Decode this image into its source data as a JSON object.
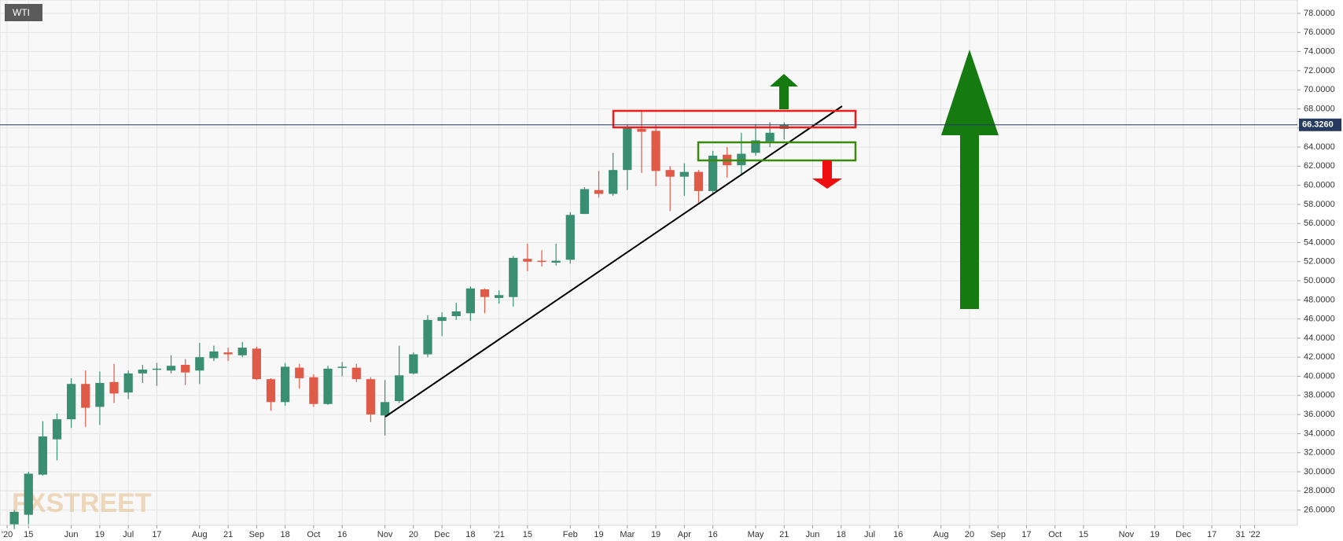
{
  "chart_data": {
    "type": "candlestick",
    "label": "WTI",
    "watermark": "FXSTREET",
    "up_color": "#3a8f72",
    "down_color": "#e05a48",
    "grid": true,
    "x": [
      0,
      1,
      2,
      3,
      4,
      5,
      6,
      7,
      8,
      9,
      10,
      11,
      12,
      13,
      14,
      15,
      16,
      17,
      18,
      19,
      20,
      21,
      22,
      23,
      24,
      25,
      26,
      27,
      28,
      29,
      30,
      31,
      32,
      33,
      34,
      35,
      36,
      37,
      38,
      39,
      40,
      41,
      42,
      43,
      44,
      45,
      46,
      47,
      48,
      49,
      50,
      51,
      52,
      53,
      54
    ],
    "open": [
      24.5,
      25.5,
      29.7,
      33.4,
      35.5,
      39.2,
      36.8,
      39.4,
      38.3,
      40.3,
      40.7,
      40.6,
      41.2,
      40.6,
      41.9,
      42.5,
      42.2,
      42.9,
      39.7,
      37.3,
      40.9,
      39.9,
      37.1,
      40.9,
      40.9,
      39.7,
      35.9,
      37.4,
      40.3,
      42.3,
      45.8,
      46.3,
      46.6,
      49.1,
      48.2,
      48.3,
      52.3,
      52.1,
      51.9,
      52.2,
      57.0,
      59.5,
      59.1,
      61.6,
      65.9,
      65.7,
      61.6,
      60.9,
      61.4,
      59.4,
      63.2,
      62.1,
      63.4,
      64.6,
      65.9
    ],
    "high": [
      26.0,
      30.0,
      35.3,
      36.1,
      39.8,
      40.6,
      40.5,
      41.3,
      40.6,
      41.2,
      41.4,
      42.2,
      41.8,
      43.5,
      43.2,
      43.0,
      43.6,
      43.1,
      39.8,
      41.4,
      41.3,
      40.2,
      41.1,
      41.5,
      41.3,
      39.9,
      39.6,
      43.2,
      42.5,
      46.4,
      46.7,
      47.7,
      49.4,
      49.2,
      49.0,
      52.6,
      53.9,
      53.2,
      53.9,
      57.2,
      59.8,
      61.5,
      63.4,
      66.3,
      67.9,
      66.3,
      62.0,
      62.3,
      61.6,
      63.6,
      64.0,
      65.5,
      66.4,
      66.6,
      66.6
    ],
    "low": [
      24.0,
      24.5,
      29.6,
      31.2,
      34.6,
      34.7,
      34.9,
      37.2,
      37.6,
      39.3,
      39.0,
      40.3,
      39.1,
      39.2,
      41.6,
      41.6,
      42.0,
      39.6,
      36.4,
      36.9,
      38.7,
      36.8,
      37.0,
      40.0,
      39.4,
      35.2,
      33.8,
      37.2,
      40.2,
      42.0,
      44.2,
      45.9,
      45.8,
      46.6,
      47.6,
      47.3,
      51.0,
      51.5,
      51.6,
      51.8,
      57.0,
      58.7,
      58.9,
      59.5,
      61.3,
      59.9,
      57.3,
      58.9,
      58.2,
      59.0,
      60.8,
      61.0,
      63.1,
      64.0,
      64.8
    ],
    "close": [
      25.8,
      29.8,
      33.7,
      35.5,
      39.2,
      36.7,
      39.3,
      38.2,
      40.3,
      40.7,
      40.8,
      41.1,
      40.4,
      42.0,
      42.6,
      42.3,
      43.0,
      39.7,
      37.3,
      41.0,
      39.8,
      37.1,
      40.8,
      41.0,
      39.7,
      36.0,
      37.3,
      40.1,
      42.3,
      45.9,
      46.2,
      46.8,
      49.2,
      48.3,
      48.5,
      52.4,
      52.0,
      52.0,
      52.1,
      56.9,
      59.6,
      59.1,
      61.6,
      66.1,
      65.6,
      61.5,
      60.9,
      61.4,
      59.4,
      63.1,
      62.1,
      63.3,
      64.7,
      65.5,
      66.3
    ],
    "last_price": {
      "value": 66.326,
      "label": "66.3260"
    },
    "last_price_color": "#253a5e",
    "xlim": [
      -1,
      90
    ],
    "xticks": [
      {
        "value": -0.5,
        "label": "'20"
      },
      {
        "value": 1,
        "label": "15"
      },
      {
        "value": 4,
        "label": "Jun"
      },
      {
        "value": 6,
        "label": "19"
      },
      {
        "value": 8,
        "label": "Jul"
      },
      {
        "value": 10,
        "label": "17"
      },
      {
        "value": 13,
        "label": "Aug"
      },
      {
        "value": 15,
        "label": "21"
      },
      {
        "value": 17,
        "label": "Sep"
      },
      {
        "value": 19,
        "label": "18"
      },
      {
        "value": 21,
        "label": "Oct"
      },
      {
        "value": 23,
        "label": "16"
      },
      {
        "value": 26,
        "label": "Nov"
      },
      {
        "value": 28,
        "label": "20"
      },
      {
        "value": 30,
        "label": "Dec"
      },
      {
        "value": 32,
        "label": "18"
      },
      {
        "value": 34,
        "label": "'21"
      },
      {
        "value": 36,
        "label": "15"
      },
      {
        "value": 39,
        "label": "Feb"
      },
      {
        "value": 41,
        "label": "19"
      },
      {
        "value": 43,
        "label": "Mar"
      },
      {
        "value": 45,
        "label": "19"
      },
      {
        "value": 47,
        "label": "Apr"
      },
      {
        "value": 49,
        "label": "16"
      },
      {
        "value": 52,
        "label": "May"
      },
      {
        "value": 54,
        "label": "21"
      },
      {
        "value": 56,
        "label": "Jun"
      },
      {
        "value": 58,
        "label": "18"
      },
      {
        "value": 60,
        "label": "Jul"
      },
      {
        "value": 62,
        "label": "16"
      },
      {
        "value": 65,
        "label": "Aug"
      },
      {
        "value": 67,
        "label": "20"
      },
      {
        "value": 69,
        "label": "Sep"
      },
      {
        "value": 71,
        "label": "17"
      },
      {
        "value": 73,
        "label": "Oct"
      },
      {
        "value": 75,
        "label": "15"
      },
      {
        "value": 78,
        "label": "Nov"
      },
      {
        "value": 80,
        "label": "19"
      },
      {
        "value": 82,
        "label": "Dec"
      },
      {
        "value": 84,
        "label": "17"
      },
      {
        "value": 86,
        "label": "31"
      },
      {
        "value": 87,
        "label": "'22"
      }
    ],
    "ylim": [
      24.4,
      79.4
    ],
    "yticks": [
      {
        "value": 26,
        "label": "26.0000"
      },
      {
        "value": 28,
        "label": "28.0000"
      },
      {
        "value": 30,
        "label": "30.0000"
      },
      {
        "value": 32,
        "label": "32.0000"
      },
      {
        "value": 34,
        "label": "34.0000"
      },
      {
        "value": 36,
        "label": "36.0000"
      },
      {
        "value": 38,
        "label": "38.0000"
      },
      {
        "value": 40,
        "label": "40.0000"
      },
      {
        "value": 42,
        "label": "42.0000"
      },
      {
        "value": 44,
        "label": "44.0000"
      },
      {
        "value": 46,
        "label": "46.0000"
      },
      {
        "value": 48,
        "label": "48.0000"
      },
      {
        "value": 50,
        "label": "50.0000"
      },
      {
        "value": 52,
        "label": "52.0000"
      },
      {
        "value": 54,
        "label": "54.0000"
      },
      {
        "value": 56,
        "label": "56.0000"
      },
      {
        "value": 58,
        "label": "58.0000"
      },
      {
        "value": 60,
        "label": "60.0000"
      },
      {
        "value": 62,
        "label": "62.0000"
      },
      {
        "value": 64,
        "label": "64.0000"
      },
      {
        "value": 66,
        "label": "66.0000"
      },
      {
        "value": 68,
        "label": "68.0000"
      },
      {
        "value": 70,
        "label": "70.0000"
      },
      {
        "value": 72,
        "label": "72.0000"
      },
      {
        "value": 74,
        "label": "74.0000"
      },
      {
        "value": 76,
        "label": "76.0000"
      },
      {
        "value": 78,
        "label": "78.0000"
      }
    ]
  }
}
